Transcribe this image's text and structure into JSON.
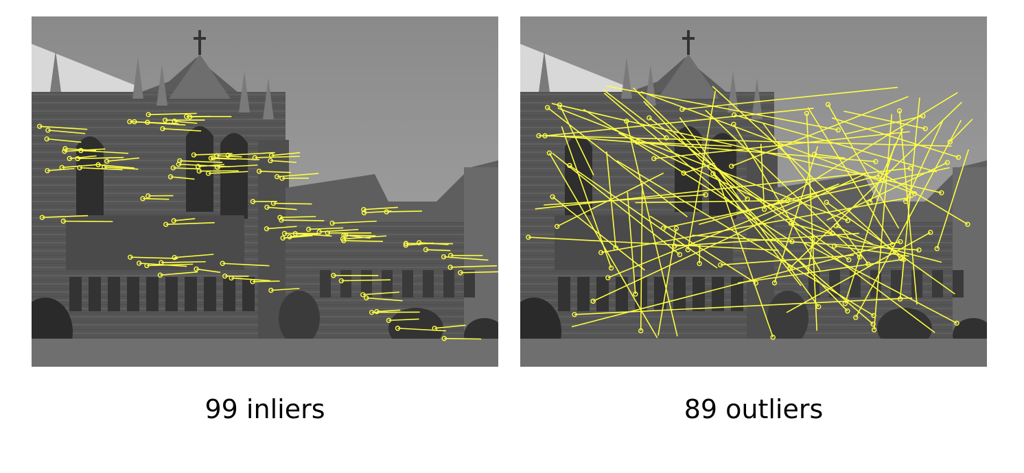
{
  "panels": [
    {
      "id": "left",
      "caption": "99 inliers",
      "match_count": 99,
      "match_type": "inliers",
      "overlay_color": "#ffff44"
    },
    {
      "id": "right",
      "caption": "89 outliers",
      "match_count": 89,
      "match_type": "outliers",
      "overlay_color": "#ffff44"
    }
  ]
}
